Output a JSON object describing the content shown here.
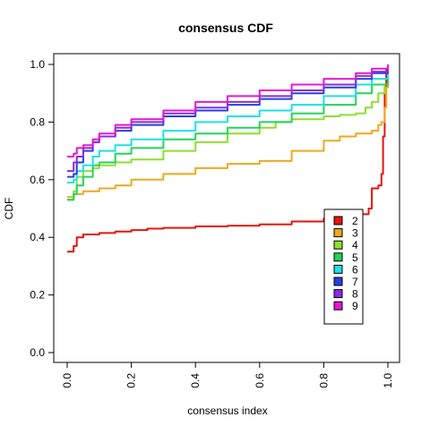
{
  "chart_data": {
    "type": "line",
    "title": "consensus CDF",
    "xlabel": "consensus index",
    "ylabel": "CDF",
    "xlim": [
      0,
      1
    ],
    "ylim": [
      0,
      1
    ],
    "x_ticks": [
      0.0,
      0.2,
      0.4,
      0.6,
      0.8,
      1.0
    ],
    "x_tick_labels": [
      "0.0",
      "0.2",
      "0.4",
      "0.6",
      "0.8",
      "1.0"
    ],
    "y_ticks": [
      0.0,
      0.2,
      0.4,
      0.6,
      0.8,
      1.0
    ],
    "y_tick_labels": [
      "0.0",
      "0.2",
      "0.4",
      "0.6",
      "0.8",
      "1.0"
    ],
    "grid": false,
    "legend_position": "bottom-right",
    "series": [
      {
        "name": "2",
        "color": "#E6140F",
        "points": [
          [
            0.0,
            0.35
          ],
          [
            0.01,
            0.35
          ],
          [
            0.02,
            0.37
          ],
          [
            0.03,
            0.4
          ],
          [
            0.05,
            0.41
          ],
          [
            0.1,
            0.415
          ],
          [
            0.15,
            0.42
          ],
          [
            0.2,
            0.425
          ],
          [
            0.25,
            0.43
          ],
          [
            0.3,
            0.433
          ],
          [
            0.4,
            0.438
          ],
          [
            0.5,
            0.44
          ],
          [
            0.6,
            0.445
          ],
          [
            0.7,
            0.455
          ],
          [
            0.8,
            0.465
          ],
          [
            0.88,
            0.47
          ],
          [
            0.92,
            0.48
          ],
          [
            0.94,
            0.5
          ],
          [
            0.95,
            0.57
          ],
          [
            0.97,
            0.58
          ],
          [
            0.98,
            0.62
          ],
          [
            0.985,
            0.75
          ],
          [
            0.99,
            0.92
          ],
          [
            0.995,
            0.98
          ],
          [
            1.0,
            1.0
          ]
        ]
      },
      {
        "name": "3",
        "color": "#F0A81E",
        "points": [
          [
            0.0,
            0.54
          ],
          [
            0.02,
            0.55
          ],
          [
            0.05,
            0.56
          ],
          [
            0.1,
            0.57
          ],
          [
            0.15,
            0.58
          ],
          [
            0.2,
            0.6
          ],
          [
            0.3,
            0.62
          ],
          [
            0.4,
            0.64
          ],
          [
            0.5,
            0.655
          ],
          [
            0.6,
            0.665
          ],
          [
            0.7,
            0.7
          ],
          [
            0.8,
            0.735
          ],
          [
            0.85,
            0.75
          ],
          [
            0.9,
            0.76
          ],
          [
            0.95,
            0.77
          ],
          [
            0.97,
            0.79
          ],
          [
            0.98,
            0.8
          ],
          [
            0.99,
            0.85
          ],
          [
            0.995,
            0.92
          ],
          [
            1.0,
            0.95
          ]
        ]
      },
      {
        "name": "4",
        "color": "#8BE02E",
        "points": [
          [
            0.0,
            0.53
          ],
          [
            0.02,
            0.56
          ],
          [
            0.03,
            0.61
          ],
          [
            0.05,
            0.63
          ],
          [
            0.08,
            0.64
          ],
          [
            0.1,
            0.65
          ],
          [
            0.15,
            0.66
          ],
          [
            0.2,
            0.67
          ],
          [
            0.3,
            0.7
          ],
          [
            0.4,
            0.73
          ],
          [
            0.5,
            0.76
          ],
          [
            0.6,
            0.78
          ],
          [
            0.65,
            0.8
          ],
          [
            0.7,
            0.81
          ],
          [
            0.8,
            0.82
          ],
          [
            0.85,
            0.825
          ],
          [
            0.9,
            0.83
          ],
          [
            0.93,
            0.85
          ],
          [
            0.95,
            0.87
          ],
          [
            0.97,
            0.9
          ],
          [
            0.99,
            0.93
          ],
          [
            1.0,
            0.95
          ]
        ]
      },
      {
        "name": "5",
        "color": "#22D45B",
        "points": [
          [
            0.0,
            0.53
          ],
          [
            0.02,
            0.55
          ],
          [
            0.03,
            0.58
          ],
          [
            0.05,
            0.61
          ],
          [
            0.08,
            0.65
          ],
          [
            0.1,
            0.66
          ],
          [
            0.15,
            0.69
          ],
          [
            0.2,
            0.71
          ],
          [
            0.3,
            0.74
          ],
          [
            0.4,
            0.76
          ],
          [
            0.5,
            0.78
          ],
          [
            0.6,
            0.8
          ],
          [
            0.7,
            0.83
          ],
          [
            0.8,
            0.86
          ],
          [
            0.9,
            0.9
          ],
          [
            0.95,
            0.93
          ],
          [
            1.0,
            0.96
          ]
        ]
      },
      {
        "name": "6",
        "color": "#1EE0E8",
        "points": [
          [
            0.0,
            0.59
          ],
          [
            0.02,
            0.6
          ],
          [
            0.03,
            0.63
          ],
          [
            0.05,
            0.65
          ],
          [
            0.08,
            0.68
          ],
          [
            0.1,
            0.7
          ],
          [
            0.15,
            0.72
          ],
          [
            0.2,
            0.74
          ],
          [
            0.3,
            0.77
          ],
          [
            0.4,
            0.8
          ],
          [
            0.5,
            0.82
          ],
          [
            0.6,
            0.84
          ],
          [
            0.7,
            0.86
          ],
          [
            0.8,
            0.89
          ],
          [
            0.9,
            0.93
          ],
          [
            0.95,
            0.95
          ],
          [
            1.0,
            0.97
          ]
        ]
      },
      {
        "name": "7",
        "color": "#2740E0",
        "points": [
          [
            0.0,
            0.61
          ],
          [
            0.02,
            0.62
          ],
          [
            0.03,
            0.66
          ],
          [
            0.05,
            0.7
          ],
          [
            0.08,
            0.73
          ],
          [
            0.1,
            0.75
          ],
          [
            0.15,
            0.77
          ],
          [
            0.2,
            0.79
          ],
          [
            0.3,
            0.82
          ],
          [
            0.4,
            0.84
          ],
          [
            0.5,
            0.86
          ],
          [
            0.6,
            0.88
          ],
          [
            0.7,
            0.9
          ],
          [
            0.8,
            0.92
          ],
          [
            0.9,
            0.95
          ],
          [
            0.95,
            0.97
          ],
          [
            1.0,
            0.99
          ]
        ]
      },
      {
        "name": "8",
        "color": "#8B2BE2",
        "points": [
          [
            0.0,
            0.63
          ],
          [
            0.02,
            0.66
          ],
          [
            0.03,
            0.68
          ],
          [
            0.05,
            0.71
          ],
          [
            0.08,
            0.73
          ],
          [
            0.1,
            0.75
          ],
          [
            0.15,
            0.78
          ],
          [
            0.2,
            0.8
          ],
          [
            0.3,
            0.83
          ],
          [
            0.4,
            0.85
          ],
          [
            0.5,
            0.87
          ],
          [
            0.6,
            0.89
          ],
          [
            0.7,
            0.91
          ],
          [
            0.8,
            0.93
          ],
          [
            0.9,
            0.96
          ],
          [
            0.95,
            0.975
          ],
          [
            1.0,
            0.99
          ]
        ]
      },
      {
        "name": "9",
        "color": "#E617CF",
        "points": [
          [
            0.0,
            0.68
          ],
          [
            0.02,
            0.69
          ],
          [
            0.03,
            0.71
          ],
          [
            0.05,
            0.72
          ],
          [
            0.08,
            0.74
          ],
          [
            0.1,
            0.76
          ],
          [
            0.15,
            0.79
          ],
          [
            0.2,
            0.81
          ],
          [
            0.3,
            0.84
          ],
          [
            0.4,
            0.87
          ],
          [
            0.5,
            0.89
          ],
          [
            0.6,
            0.91
          ],
          [
            0.7,
            0.93
          ],
          [
            0.8,
            0.95
          ],
          [
            0.9,
            0.97
          ],
          [
            0.95,
            0.985
          ],
          [
            1.0,
            1.0
          ]
        ]
      }
    ]
  }
}
